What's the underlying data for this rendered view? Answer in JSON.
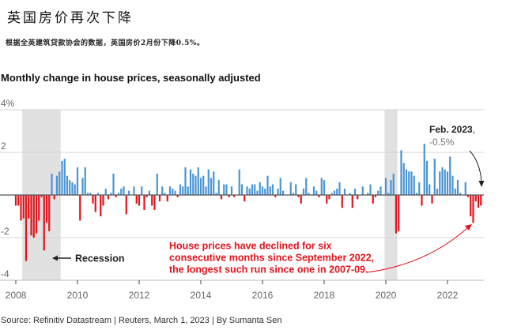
{
  "header": {
    "title": "英国房价再次下降",
    "subtitle": "根据全英建筑贷款协会的数据，英国房价2月份下降0.5%。"
  },
  "footer": {
    "source": "Source: Refinitiv Datastream | Reuters, March 1, 2023 | By Sumanta Sen"
  },
  "chart_data": {
    "type": "bar",
    "title": "Monthly change in house prices, seasonally adjusted",
    "xlabel": "",
    "ylabel": "",
    "ylim": [
      -4,
      4
    ],
    "yticks": [
      4,
      2,
      0,
      -2,
      -4
    ],
    "ytick_labels": [
      "4%",
      "2",
      "",
      "-2",
      "-4"
    ],
    "xticks": [
      "2008",
      "2010",
      "2012",
      "2014",
      "2016",
      "2018",
      "2020",
      "2022"
    ],
    "grid": true,
    "colors": {
      "positive": "#4a94d4",
      "negative": "#e3121b",
      "recession": "#e1e1e1",
      "zero_line": "#555555",
      "grid": "#d4d4d4"
    },
    "recessions": [
      {
        "from": "2008-04",
        "to": "2009-06",
        "label": "Recession"
      },
      {
        "from": "2020-01",
        "to": "2020-05"
      }
    ],
    "x": [
      "2008-01",
      "2008-02",
      "2008-03",
      "2008-04",
      "2008-05",
      "2008-06",
      "2008-07",
      "2008-08",
      "2008-09",
      "2008-10",
      "2008-11",
      "2008-12",
      "2009-01",
      "2009-02",
      "2009-03",
      "2009-04",
      "2009-05",
      "2009-06",
      "2009-07",
      "2009-08",
      "2009-09",
      "2009-10",
      "2009-11",
      "2009-12",
      "2010-01",
      "2010-02",
      "2010-03",
      "2010-04",
      "2010-05",
      "2010-06",
      "2010-07",
      "2010-08",
      "2010-09",
      "2010-10",
      "2010-11",
      "2010-12",
      "2011-01",
      "2011-02",
      "2011-03",
      "2011-04",
      "2011-05",
      "2011-06",
      "2011-07",
      "2011-08",
      "2011-09",
      "2011-10",
      "2011-11",
      "2011-12",
      "2012-01",
      "2012-02",
      "2012-03",
      "2012-04",
      "2012-05",
      "2012-06",
      "2012-07",
      "2012-08",
      "2012-09",
      "2012-10",
      "2012-11",
      "2012-12",
      "2013-01",
      "2013-02",
      "2013-03",
      "2013-04",
      "2013-05",
      "2013-06",
      "2013-07",
      "2013-08",
      "2013-09",
      "2013-10",
      "2013-11",
      "2013-12",
      "2014-01",
      "2014-02",
      "2014-03",
      "2014-04",
      "2014-05",
      "2014-06",
      "2014-07",
      "2014-08",
      "2014-09",
      "2014-10",
      "2014-11",
      "2014-12",
      "2015-01",
      "2015-02",
      "2015-03",
      "2015-04",
      "2015-05",
      "2015-06",
      "2015-07",
      "2015-08",
      "2015-09",
      "2015-10",
      "2015-11",
      "2015-12",
      "2016-01",
      "2016-02",
      "2016-03",
      "2016-04",
      "2016-05",
      "2016-06",
      "2016-07",
      "2016-08",
      "2016-09",
      "2016-10",
      "2016-11",
      "2016-12",
      "2017-01",
      "2017-02",
      "2017-03",
      "2017-04",
      "2017-05",
      "2017-06",
      "2017-07",
      "2017-08",
      "2017-09",
      "2017-10",
      "2017-11",
      "2017-12",
      "2018-01",
      "2018-02",
      "2018-03",
      "2018-04",
      "2018-05",
      "2018-06",
      "2018-07",
      "2018-08",
      "2018-09",
      "2018-10",
      "2018-11",
      "2018-12",
      "2019-01",
      "2019-02",
      "2019-03",
      "2019-04",
      "2019-05",
      "2019-06",
      "2019-07",
      "2019-08",
      "2019-09",
      "2019-10",
      "2019-11",
      "2019-12",
      "2020-01",
      "2020-02",
      "2020-03",
      "2020-04",
      "2020-05",
      "2020-06",
      "2020-07",
      "2020-08",
      "2020-09",
      "2020-10",
      "2020-11",
      "2020-12",
      "2021-01",
      "2021-02",
      "2021-03",
      "2021-04",
      "2021-05",
      "2021-06",
      "2021-07",
      "2021-08",
      "2021-09",
      "2021-10",
      "2021-11",
      "2021-12",
      "2022-01",
      "2022-02",
      "2022-03",
      "2022-04",
      "2022-05",
      "2022-06",
      "2022-07",
      "2022-08",
      "2022-09",
      "2022-10",
      "2022-11",
      "2022-12",
      "2023-01",
      "2023-02"
    ],
    "values": [
      -0.5,
      -0.5,
      -1.2,
      -1.1,
      -3.1,
      -1.1,
      -1.9,
      -2.0,
      -1.8,
      -1.2,
      -0.1,
      -2.6,
      -1.3,
      -1.7,
      1.0,
      -0.2,
      0.9,
      1.1,
      1.6,
      1.7,
      0.9,
      0.7,
      0.6,
      0.5,
      1.3,
      -1.2,
      0.8,
      1.3,
      0.1,
      0.1,
      -0.4,
      -0.8,
      0.1,
      -1.0,
      -0.5,
      0.3,
      -0.2,
      0.1,
      1.0,
      -0.1,
      0.1,
      0.3,
      0.4,
      -0.9,
      0.2,
      0.0,
      0.4,
      -0.4,
      -0.5,
      0.4,
      -0.7,
      -0.1,
      0.2,
      -0.5,
      -0.7,
      1.0,
      -0.3,
      0.4,
      0.1,
      -0.3,
      0.4,
      0.3,
      0.2,
      -0.1,
      0.5,
      0.4,
      1.3,
      0.4,
      1.2,
      1.0,
      0.9,
      1.3,
      0.8,
      0.9,
      0.4,
      1.2,
      0.8,
      1.1,
      0.1,
      0.7,
      -0.2,
      0.5,
      0.5,
      -0.1,
      0.4,
      -0.1,
      0.0,
      1.2,
      0.5,
      -0.3,
      0.4,
      0.3,
      0.5,
      0.5,
      0.2,
      0.6,
      0.4,
      0.3,
      0.9,
      0.4,
      0.5,
      -0.1,
      0.3,
      0.8,
      0.2,
      0.0,
      0.0,
      0.6,
      0.1,
      0.5,
      -0.1,
      -0.4,
      0.3,
      0.8,
      0.1,
      0.0,
      0.4,
      0.2,
      -0.1,
      0.8,
      0.7,
      -0.4,
      -0.2,
      0.1,
      0.2,
      0.3,
      0.6,
      -0.6,
      0.3,
      0.0,
      0.1,
      -0.6,
      0.3,
      -0.2,
      0.0,
      0.4,
      0.0,
      0.1,
      0.5,
      -0.4,
      -0.1,
      0.2,
      0.4,
      0.0,
      0.8,
      0.1,
      0.7,
      1.0,
      -1.8,
      -1.7,
      2.1,
      1.5,
      1.2,
      1.1,
      1.1,
      0.9,
      0.1,
      0.6,
      -0.5,
      2.4,
      1.6,
      0.5,
      -0.4,
      1.7,
      0.3,
      1.1,
      1.3,
      1.2,
      1.1,
      1.8,
      0.9,
      0.3,
      0.7,
      0.1,
      0.0,
      0.6,
      -0.1,
      -1.0,
      -1.3,
      -0.3,
      -0.6,
      -0.5
    ],
    "annotations": {
      "recession": "Recession",
      "latest_label": "Feb. 2023",
      "latest_comma": ",",
      "latest_value": "-0.5%",
      "note_lines": [
        "House prices have declined for six",
        "consecutive months since September 2022,",
        "the longest such run since one in 2007-09."
      ]
    }
  }
}
